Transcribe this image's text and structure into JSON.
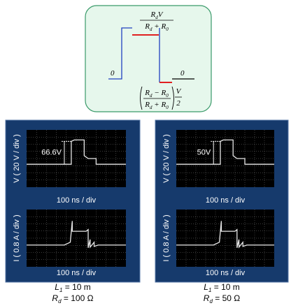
{
  "diagram": {
    "level_left": "0",
    "level_right": "0",
    "top_formula": {
      "numerator": [
        "R",
        "d",
        "V"
      ],
      "denominator": [
        "R",
        "d",
        " + ",
        "R",
        "0"
      ]
    },
    "bottom_formula": {
      "numerator": [
        "R",
        "d",
        " − ",
        "R",
        "0"
      ],
      "denominator": [
        "R",
        "d",
        " + ",
        "R",
        "0"
      ],
      "factor_numerator": "V",
      "factor_denominator": "2"
    }
  },
  "panels": [
    {
      "voltage_axis": "V ( 20 V / div )",
      "voltage_marker": "66.6V",
      "time_axis_top": "100 ns / div",
      "current_axis": "I ( 0.8 A / div )",
      "time_axis_bottom": "100 ns / div",
      "caption_l": [
        "L",
        "1",
        " = 10 m"
      ],
      "caption_r": [
        "R",
        "d",
        " = 100 Ω"
      ]
    },
    {
      "voltage_axis": "V ( 20 V / div )",
      "voltage_marker": "50V",
      "time_axis_top": "100 ns / div",
      "current_axis": "I ( 0.8 A / div )",
      "time_axis_bottom": "100 ns / div",
      "caption_l": [
        "L",
        "1",
        " = 10 m"
      ],
      "caption_r": [
        "R",
        "d",
        " = 50 Ω"
      ]
    }
  ]
}
